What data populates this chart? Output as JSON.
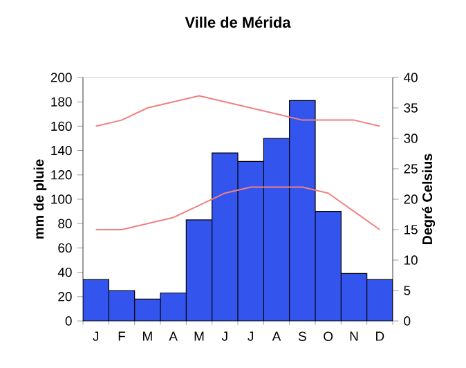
{
  "chart_data": {
    "type": "bar",
    "title": "Ville de Mérida",
    "ylabel": "mm de pluie",
    "y2label": "Degré Celsius",
    "categories": [
      "J",
      "F",
      "M",
      "A",
      "M",
      "J",
      "J",
      "A",
      "S",
      "O",
      "N",
      "D"
    ],
    "series": [
      {
        "color": "#3355ee",
        "values": [
          34,
          25,
          18,
          23,
          83,
          138,
          131,
          150,
          181,
          90,
          39,
          34
        ]
      },
      {
        "type": "line",
        "axis": "y2",
        "color": "#f08080",
        "values": [
          32,
          33,
          35,
          36,
          37,
          36,
          35,
          34,
          33,
          33,
          33,
          32
        ]
      },
      {
        "type": "line",
        "axis": "y2",
        "color": "#f08080",
        "values": [
          15,
          15,
          16,
          17,
          19,
          21,
          22,
          22,
          22,
          21,
          18,
          15
        ]
      }
    ],
    "ylim": [
      0,
      200
    ],
    "yticks": [
      0,
      20,
      40,
      60,
      80,
      100,
      120,
      140,
      160,
      180,
      200
    ],
    "y2lim": [
      0,
      40
    ],
    "y2ticks": [
      0,
      5,
      10,
      15,
      20,
      25,
      30,
      35,
      40
    ],
    "grid": false
  }
}
